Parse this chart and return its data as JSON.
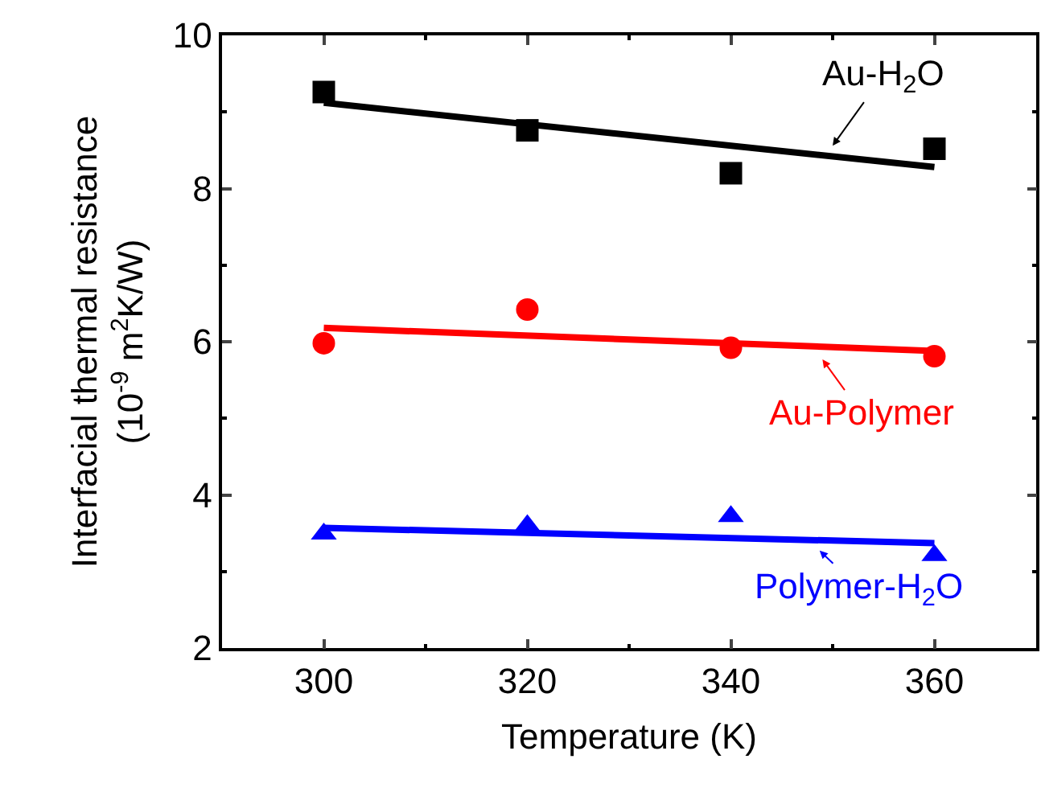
{
  "chart_data": {
    "type": "scatter",
    "xlabel": "Temperature (K)",
    "ylabel": "Interfacial thermal resistance\n(10$^{-9}$ m$^{2}$K/W)",
    "xlim": [
      290,
      370
    ],
    "xticks": [
      300,
      320,
      340,
      360
    ],
    "ylim": [
      2,
      10
    ],
    "yticks": [
      2,
      4,
      6,
      8,
      10
    ],
    "series": [
      {
        "marker": "square",
        "color": "#000000",
        "x": [
          300,
          320,
          340,
          360
        ],
        "values": [
          9.26,
          8.76,
          8.2,
          8.52
        ]
      },
      {
        "marker": "circle",
        "color": "#ff0000",
        "x": [
          300,
          320,
          340,
          360
        ],
        "values": [
          5.98,
          6.42,
          5.92,
          5.81
        ]
      },
      {
        "marker": "triangle",
        "color": "#0000ff",
        "x": [
          300,
          320,
          340,
          360
        ],
        "values": [
          3.49,
          3.6,
          3.72,
          3.21
        ]
      },
      {
        "type": "line",
        "color": "#000000",
        "x": [
          300,
          360
        ],
        "values": [
          9.12,
          8.28
        ]
      },
      {
        "type": "line",
        "color": "#ff0000",
        "x": [
          300,
          360
        ],
        "values": [
          6.18,
          5.88
        ]
      },
      {
        "type": "line",
        "color": "#0000ff",
        "x": [
          300,
          360
        ],
        "values": [
          3.57,
          3.37
        ]
      }
    ],
    "annotations": [
      "Au-H$_{2}$O",
      "Au-Polymer",
      "Polymer-H$_{2}$O"
    ]
  }
}
